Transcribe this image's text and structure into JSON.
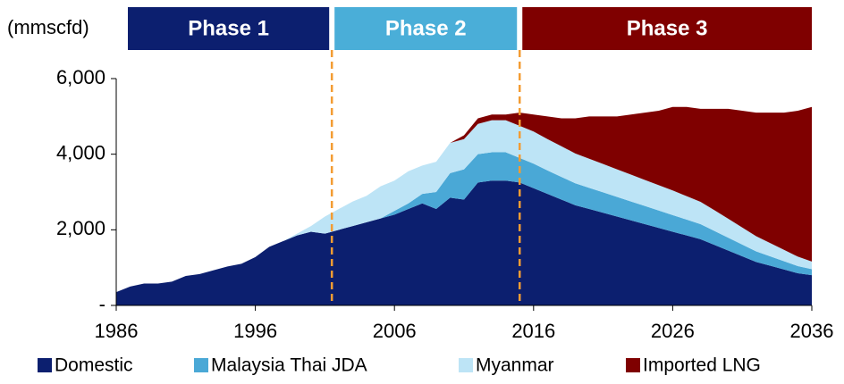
{
  "chart_data": {
    "type": "stacked_area",
    "y_label": "(mmscfd)",
    "x": [
      1986,
      1987,
      1988,
      1989,
      1990,
      1991,
      1992,
      1993,
      1994,
      1995,
      1996,
      1997,
      1998,
      1999,
      2000,
      2001,
      2002,
      2003,
      2004,
      2005,
      2006,
      2007,
      2008,
      2009,
      2010,
      2011,
      2012,
      2013,
      2014,
      2015,
      2016,
      2017,
      2018,
      2019,
      2020,
      2021,
      2022,
      2023,
      2024,
      2025,
      2026,
      2027,
      2028,
      2029,
      2030,
      2031,
      2032,
      2033,
      2034,
      2035,
      2036
    ],
    "series": [
      {
        "name": "Domestic",
        "color": "#0c1f6f",
        "values": [
          350,
          500,
          580,
          580,
          630,
          780,
          830,
          930,
          1030,
          1100,
          1280,
          1550,
          1700,
          1850,
          1950,
          1900,
          2000,
          2100,
          2200,
          2300,
          2400,
          2550,
          2700,
          2550,
          2850,
          2800,
          3250,
          3300,
          3300,
          3250,
          3100,
          2950,
          2800,
          2650,
          2550,
          2450,
          2350,
          2250,
          2150,
          2050,
          1950,
          1850,
          1750,
          1600,
          1450,
          1300,
          1150,
          1050,
          950,
          850,
          800
        ]
      },
      {
        "name": "Malaysia Thai JDA",
        "color": "#4aa8d6",
        "values": [
          0,
          0,
          0,
          0,
          0,
          0,
          0,
          0,
          0,
          0,
          0,
          0,
          0,
          0,
          0,
          0,
          0,
          0,
          0,
          0,
          100,
          150,
          250,
          450,
          650,
          800,
          750,
          750,
          750,
          650,
          650,
          620,
          600,
          580,
          560,
          540,
          520,
          500,
          480,
          460,
          440,
          420,
          400,
          370,
          340,
          310,
          280,
          250,
          220,
          190,
          160
        ]
      },
      {
        "name": "Myanmar",
        "color": "#bde4f6",
        "values": [
          0,
          0,
          0,
          0,
          0,
          0,
          0,
          0,
          0,
          0,
          0,
          0,
          0,
          50,
          150,
          450,
          550,
          650,
          700,
          850,
          800,
          850,
          750,
          800,
          800,
          800,
          800,
          850,
          850,
          850,
          850,
          830,
          810,
          790,
          770,
          750,
          730,
          710,
          690,
          670,
          650,
          620,
          590,
          550,
          500,
          450,
          400,
          350,
          300,
          250,
          200
        ]
      },
      {
        "name": "Imported LNG",
        "color": "#7f0000",
        "values": [
          0,
          0,
          0,
          0,
          0,
          0,
          0,
          0,
          0,
          0,
          0,
          0,
          0,
          0,
          0,
          0,
          0,
          0,
          0,
          0,
          0,
          0,
          0,
          0,
          0,
          100,
          150,
          150,
          150,
          350,
          450,
          600,
          740,
          930,
          1120,
          1260,
          1400,
          1590,
          1780,
          1970,
          2210,
          2360,
          2460,
          2680,
          2910,
          3090,
          3270,
          3450,
          3630,
          3860,
          4090
        ]
      }
    ],
    "xlim": [
      1986,
      2036
    ],
    "xticks": [
      1986,
      1996,
      2006,
      2016,
      2026,
      2036
    ],
    "ylim": [
      0,
      6000
    ],
    "yticks": [
      {
        "value": 0,
        "label": "-"
      },
      {
        "value": 2000,
        "label": "2,000"
      },
      {
        "value": 4000,
        "label": "4,000"
      },
      {
        "value": 6000,
        "label": "6,000"
      }
    ],
    "phases": [
      {
        "label": "Phase 1",
        "color": "#0c1f6f"
      },
      {
        "label": "Phase 2",
        "color": "#4aaed8"
      },
      {
        "label": "Phase 3",
        "color": "#7f0000"
      }
    ],
    "phase_boundaries": [
      2001.5,
      2015
    ],
    "boundary_color": "#f39c33",
    "legend": "bottom"
  }
}
